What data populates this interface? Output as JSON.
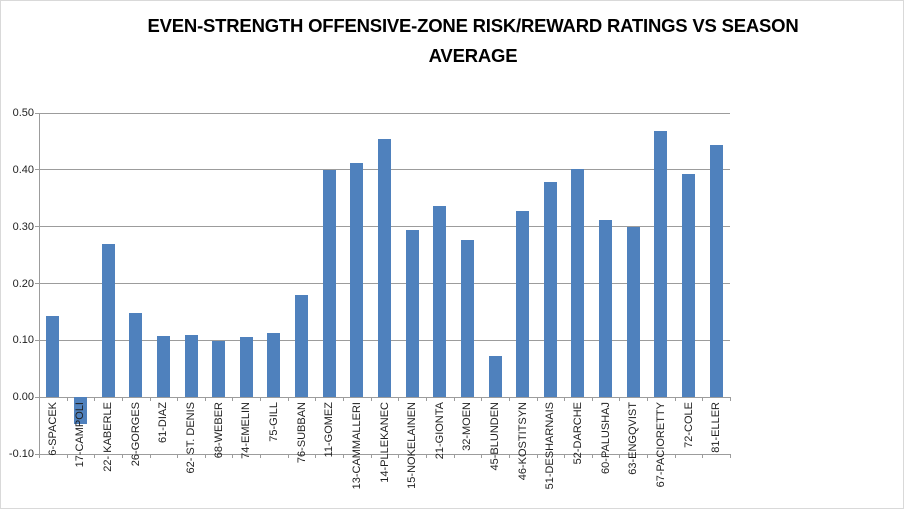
{
  "chart_data": {
    "type": "bar",
    "title": "EVEN-STRENGTH OFFENSIVE-ZONE RISK/REWARD RATINGS VS SEASON AVERAGE",
    "title_line1": "EVEN-STRENGTH OFFENSIVE-ZONE RISK/REWARD RATINGS VS SEASON",
    "title_line2": "AVERAGE",
    "categories": [
      "6-SPACEK",
      "17-CAMPOLI",
      "22- KABERLE",
      "26-GORGES",
      "61-DIAZ",
      "62- ST. DENIS",
      "68-WEBER",
      "74-EMELIN",
      "75-GILL",
      "76-SUBBAN",
      "11-GOMEZ",
      "13-CAMMALLERI",
      "14-PLLEKANEC",
      "15-NOKELAINEN",
      "21-GIONTA",
      "32-MOEN",
      "45-BLUNDEN",
      "46-KOSTITSYN",
      "51-DESHARNAIS",
      "52-DARCHE",
      "60-PALUSHAJ",
      "63-ENGQVIST",
      "67-PACIORETTY",
      "72-COLE",
      "81-ELLER"
    ],
    "values": [
      0.143,
      -0.047,
      0.27,
      0.148,
      0.108,
      0.11,
      0.098,
      0.106,
      0.113,
      0.18,
      0.4,
      0.412,
      0.455,
      0.294,
      0.337,
      0.277,
      0.073,
      0.328,
      0.378,
      0.402,
      0.311,
      0.299,
      0.468,
      0.392,
      0.443
    ],
    "xlabel": "",
    "ylabel": "",
    "ylim": [
      -0.1,
      0.5
    ],
    "ytick_labels": [
      "0.50",
      "0.40",
      "0.30",
      "0.20",
      "0.10",
      "0.00",
      "-0.10"
    ],
    "grid": "horizontal",
    "legend": "none",
    "bar_color": "#4F81BD",
    "gridline_color": "#9c9c9c",
    "axis_color": "#9c9c9c",
    "label_color": "#1f1f1f",
    "title_color": "#000000",
    "background_color": "#ffffff"
  }
}
